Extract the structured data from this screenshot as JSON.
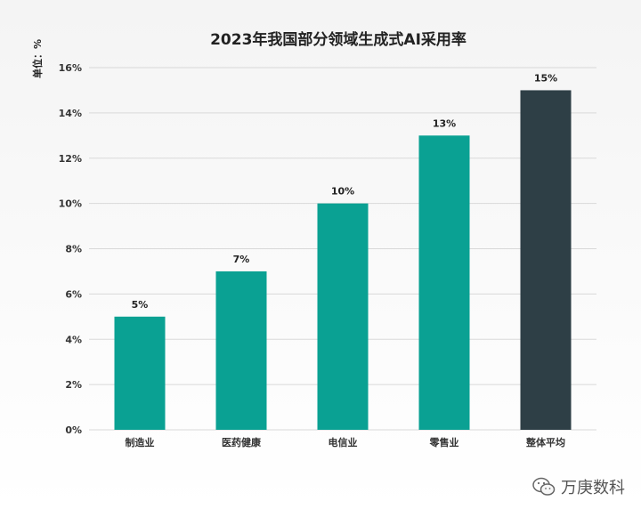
{
  "chart_data": {
    "type": "bar",
    "title": "2023年我国部分领域生成式AI采用率",
    "unit_label": "单位：%",
    "categories": [
      "制造业",
      "医药健康",
      "电信业",
      "零售业",
      "整体平均"
    ],
    "values": [
      5,
      7,
      10,
      13,
      15
    ],
    "data_labels": [
      "5%",
      "7%",
      "10%",
      "13%",
      "15%"
    ],
    "ylim": [
      0,
      16
    ],
    "yticks": [
      "0%",
      "2%",
      "4%",
      "6%",
      "8%",
      "10%",
      "12%",
      "14%",
      "16%"
    ],
    "grid": true,
    "colors": {
      "bar": "#0aa193",
      "highlight": "#2e3f46",
      "highlight_index": 4
    }
  },
  "watermark": {
    "text": "万庚数科",
    "icon": "wechat-icon"
  }
}
